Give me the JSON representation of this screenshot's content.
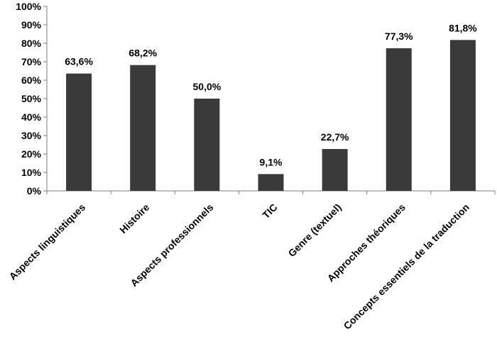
{
  "chart_data": {
    "type": "bar",
    "categories": [
      "Aspects linguistiques",
      "Histoire",
      "Aspects professionnels",
      "TIC",
      "Genre (textuel)",
      "Approches théoriques",
      "Concepts essentiels de la traduction"
    ],
    "values": [
      63.6,
      68.2,
      50.0,
      9.1,
      22.7,
      77.3,
      81.8
    ],
    "value_labels": [
      "63,6%",
      "68,2%",
      "50,0%",
      "9,1%",
      "22,7%",
      "77,3%",
      "81,8%"
    ],
    "yticks": [
      "0%",
      "10%",
      "20%",
      "30%",
      "40%",
      "50%",
      "60%",
      "70%",
      "80%",
      "90%",
      "100%"
    ],
    "ylim": [
      0,
      100
    ],
    "bar_color": "#3a3a3a",
    "axis_color": "#7f7f7f",
    "grid": false,
    "legend": "none"
  }
}
